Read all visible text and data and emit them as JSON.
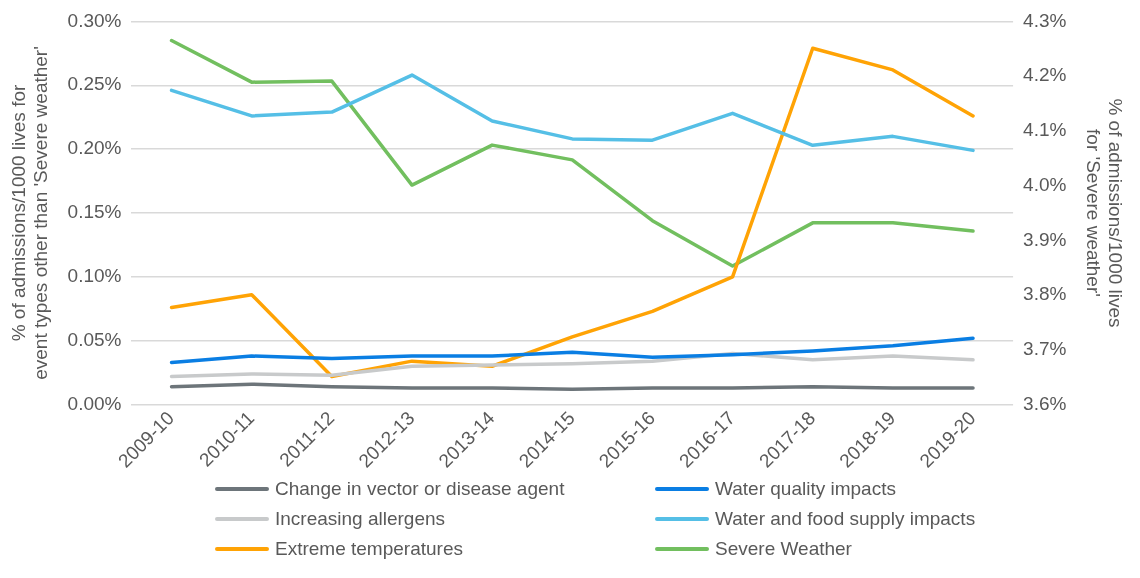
{
  "chart_data": {
    "type": "line",
    "ylabel": "% of admissions/1000 lives for event types other than 'Severe weather'",
    "y2label": "% of admissions/1000 lives for 'Severe weather'",
    "categories": [
      "2009-10",
      "2010-11",
      "2011-12",
      "2012-13",
      "2013-14",
      "2014-15",
      "2015-16",
      "2016-17",
      "2017-18",
      "2018-19",
      "2019-20"
    ],
    "series": [
      {
        "name": "Change in vector or disease agent",
        "color": "#6d757a",
        "values": [
          0.014,
          0.016,
          0.014,
          0.013,
          0.013,
          0.012,
          0.013,
          0.013,
          0.014,
          0.013,
          0.013
        ]
      },
      {
        "name": "Water quality impacts",
        "color": "#0a7ee3",
        "values": [
          0.033,
          0.038,
          0.036,
          0.038,
          0.038,
          0.041,
          0.037,
          0.039,
          0.042,
          0.046,
          0.052
        ]
      },
      {
        "name": "Increasing allergens",
        "color": "#c8cacb",
        "values": [
          0.022,
          0.024,
          0.023,
          0.03,
          0.031,
          0.032,
          0.034,
          0.04,
          0.035,
          0.038,
          0.035
        ]
      },
      {
        "name": "Water and food supply impacts",
        "color": "#55bfe6",
        "values": [
          0.246,
          0.226,
          0.229,
          0.258,
          0.222,
          0.208,
          0.207,
          0.228,
          0.203,
          0.21,
          0.199
        ]
      },
      {
        "name": "Extreme temperatures",
        "color": "#ffa305",
        "values": [
          0.076,
          0.086,
          0.022,
          0.034,
          0.03,
          0.053,
          0.073,
          0.1,
          0.279,
          0.262,
          0.226
        ]
      },
      {
        "name": "Severe Weather",
        "color": "#72bf5f",
        "axis": "y2",
        "values": [
          4.265,
          4.189,
          4.191,
          4.001,
          4.074,
          4.047,
          3.936,
          3.853,
          3.932,
          3.932,
          3.917
        ]
      }
    ],
    "ylim": [
      0,
      0.3
    ],
    "yticks": [
      {
        "value": 0,
        "label": "0.00%"
      },
      {
        "value": 0.05,
        "label": "0.05%"
      },
      {
        "value": 0.1,
        "label": "0.10%"
      },
      {
        "value": 0.15,
        "label": "0.15%"
      },
      {
        "value": 0.2,
        "label": "0.20%"
      },
      {
        "value": 0.25,
        "label": "0.25%"
      },
      {
        "value": 0.3,
        "label": "0.30%"
      }
    ],
    "y2lim": [
      3.6,
      4.3
    ],
    "y2ticks": [
      {
        "value": 3.6,
        "label": "3.6%"
      },
      {
        "value": 3.7,
        "label": "3.7%"
      },
      {
        "value": 3.8,
        "label": "3.8%"
      },
      {
        "value": 3.9,
        "label": "3.9%"
      },
      {
        "value": 4.0,
        "label": "4.0%"
      },
      {
        "value": 4.1,
        "label": "4.1%"
      },
      {
        "value": 4.2,
        "label": "4.2%"
      },
      {
        "value": 4.3,
        "label": "4.3%"
      }
    ],
    "grid": "y",
    "legend": "bottom",
    "marker": "none",
    "line_style": "solid"
  }
}
